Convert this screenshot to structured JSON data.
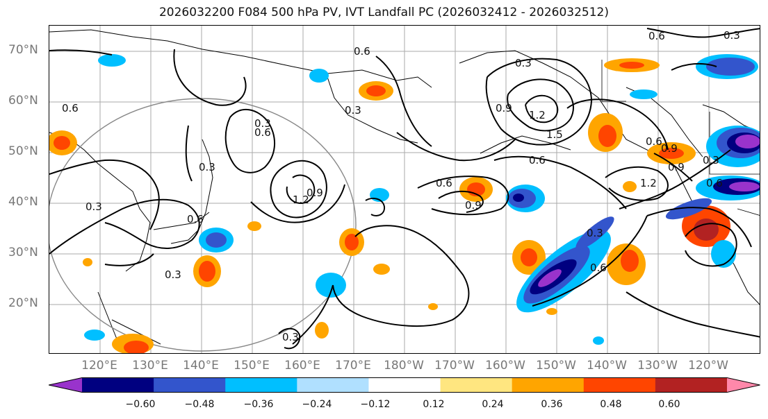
{
  "title": "2026032200 F084 500 hPa PV, IVT Landfall PC (2026032412 - 2026032512)",
  "latitude_labels": [
    "70°N",
    "60°N",
    "50°N",
    "40°N",
    "30°N",
    "20°N"
  ],
  "longitude_labels": [
    "120°E",
    "130°E",
    "140°E",
    "150°E",
    "160°E",
    "170°E",
    "180°W",
    "170°W",
    "160°W",
    "150°W",
    "140°W",
    "130°W",
    "120°W"
  ],
  "colorbar": {
    "ticks": [
      "−0.60",
      "−0.48",
      "−0.36",
      "−0.24",
      "−0.12",
      "0.12",
      "0.24",
      "0.36",
      "0.48",
      "0.60"
    ],
    "colors": [
      "#9933cc",
      "#000080",
      "#3355cc",
      "#00bfff",
      "#b0e0ff",
      "#ffffff",
      "#ffe680",
      "#ffa500",
      "#ff4500",
      "#b22222",
      "#ff88aa"
    ]
  },
  "contour_labels": [
    "0.6",
    "0.3",
    "0.6",
    "0.6",
    "0.3",
    "0.9",
    "1.2",
    "1.5",
    "0.3",
    "0.6",
    "0.6",
    "0.9",
    "0.6",
    "0.9",
    "0.6",
    "0.9",
    "1.2",
    "0.3",
    "0.3",
    "0.6",
    "0.3",
    "0.3",
    "0.3",
    "0.6",
    "0.6",
    "0.3",
    "0.9",
    "1.2",
    "0.3"
  ]
}
